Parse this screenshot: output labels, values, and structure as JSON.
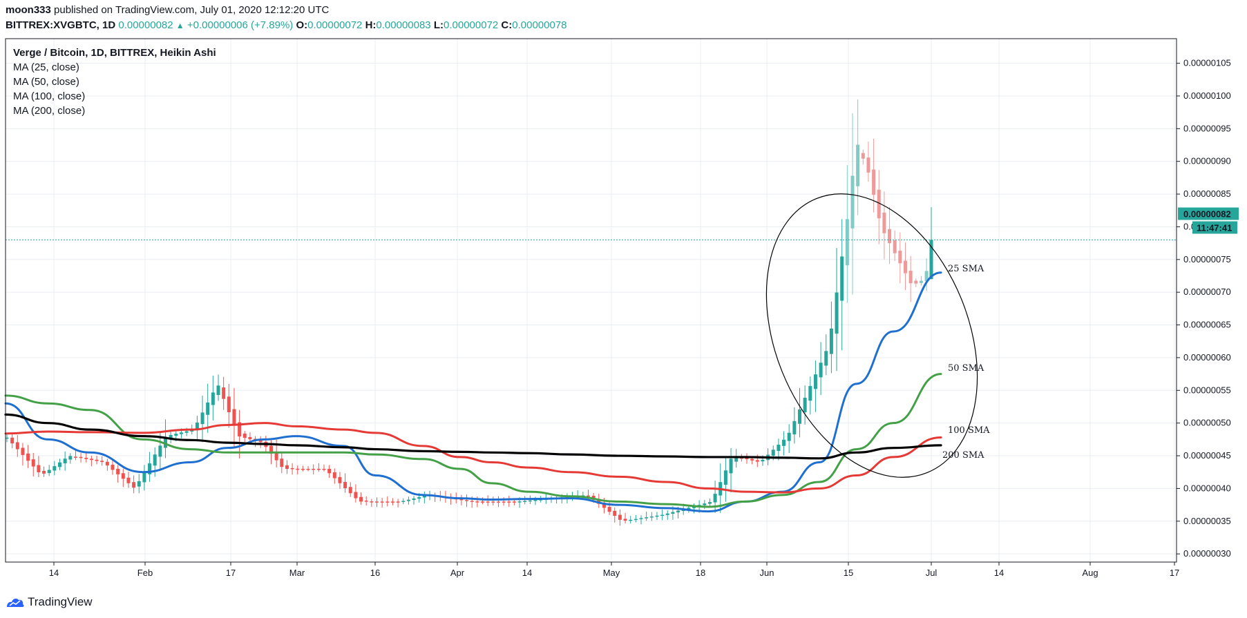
{
  "header": {
    "author": "moon333",
    "published_text": "published on TradingView.com, July 01, 2020 12:12:20 UTC",
    "symbol": "BITTREX:XVGBTC, 1D",
    "last_price": "0.00000082",
    "change": "+0.00000006 (+7.89%)",
    "o_label": "O:",
    "o_value": "0.00000072",
    "h_label": "H:",
    "h_value": "0.00000083",
    "l_label": "L:",
    "l_value": "0.00000072",
    "c_label": "C:",
    "c_value": "0.00000078"
  },
  "footer": {
    "brand": "TradingView",
    "icon": "tradingview-logo-icon"
  },
  "colors": {
    "up": "#26a69a",
    "down": "#ef5350",
    "up_light": "#80cbc4",
    "down_light": "#ef9a9a",
    "ma25": "#1e6fd0",
    "ma50": "#43a047",
    "ma100": "#e53935",
    "ma200": "#000000",
    "grid": "#e9eef3",
    "price_line": "#26a69a"
  },
  "chart_data": {
    "type": "line",
    "title": "Verge / Bitcoin, 1D, BITTREX, Heikin Ashi",
    "legend": [
      "MA (25, close)",
      "MA (50, close)",
      "MA (100, close)",
      "MA (200, close)"
    ],
    "x_tick_labels": [
      "14",
      "Feb",
      "17",
      "Mar",
      "16",
      "Apr",
      "14",
      "May",
      "18",
      "Jun",
      "15",
      "Jul",
      "14",
      "Aug",
      "17"
    ],
    "y_tick_labels": [
      "0.00000105",
      "0.00000100",
      "0.00000095",
      "0.00000090",
      "0.00000085",
      "0.00000080",
      "0.00000075",
      "0.00000070",
      "0.00000065",
      "0.00000060",
      "0.00000055",
      "0.00000050",
      "0.00000045",
      "0.00000040",
      "0.00000035",
      "0.00000030"
    ],
    "ylim": [
      2.97e-07,
      1.058e-06
    ],
    "price_label": "0.00000082",
    "countdown_label": "11:47:41",
    "current_price": 7.8e-07,
    "x": [
      "2020-01-06",
      "2020-01-14",
      "2020-01-22",
      "2020-02-01",
      "2020-02-10",
      "2020-02-17",
      "2020-02-24",
      "2020-03-01",
      "2020-03-10",
      "2020-03-16",
      "2020-03-25",
      "2020-04-01",
      "2020-04-07",
      "2020-04-14",
      "2020-04-22",
      "2020-05-01",
      "2020-05-10",
      "2020-05-18",
      "2020-05-25",
      "2020-06-01",
      "2020-06-08",
      "2020-06-15",
      "2020-06-22",
      "2020-07-01"
    ],
    "series": [
      {
        "name": "MA (25, close)",
        "values": [
          5.3e-07,
          4.75e-07,
          4.55e-07,
          4.25e-07,
          4.4e-07,
          4.62e-07,
          4.75e-07,
          4.8e-07,
          4.65e-07,
          4.2e-07,
          3.9e-07,
          3.85e-07,
          3.83e-07,
          3.84e-07,
          3.85e-07,
          3.75e-07,
          3.7e-07,
          3.65e-07,
          3.8e-07,
          3.95e-07,
          4.4e-07,
          5.6e-07,
          6.4e-07,
          7.3e-07
        ]
      },
      {
        "name": "MA (50, close)",
        "values": [
          5.42e-07,
          5.3e-07,
          5.2e-07,
          4.75e-07,
          4.6e-07,
          4.55e-07,
          4.55e-07,
          4.55e-07,
          4.55e-07,
          4.52e-07,
          4.45e-07,
          4.3e-07,
          4.08e-07,
          3.95e-07,
          3.88e-07,
          3.8e-07,
          3.76e-07,
          3.72e-07,
          3.8e-07,
          3.9e-07,
          4.1e-07,
          4.6e-07,
          5e-07,
          5.75e-07
        ]
      },
      {
        "name": "MA (100, close)",
        "values": [
          4.84e-07,
          4.87e-07,
          4.86e-07,
          4.85e-07,
          4.9e-07,
          4.97e-07,
          5e-07,
          4.95e-07,
          4.9e-07,
          4.85e-07,
          4.65e-07,
          4.48e-07,
          4.4e-07,
          4.32e-07,
          4.25e-07,
          4.18e-07,
          4.1e-07,
          4e-07,
          3.95e-07,
          3.94e-07,
          4e-07,
          4.2e-07,
          4.48e-07,
          4.78e-07
        ]
      },
      {
        "name": "MA (200, close)",
        "values": [
          5.13e-07,
          5e-07,
          4.9e-07,
          4.8e-07,
          4.74e-07,
          4.7e-07,
          4.68e-07,
          4.66e-07,
          4.63e-07,
          4.6e-07,
          4.57e-07,
          4.56e-07,
          4.55e-07,
          4.54e-07,
          4.52e-07,
          4.5e-07,
          4.49e-07,
          4.48e-07,
          4.48e-07,
          4.47e-07,
          4.46e-07,
          4.55e-07,
          4.62e-07,
          4.66e-07
        ]
      }
    ],
    "annotations": [
      "25 SMA",
      "50 SMA",
      "100 SMA",
      "200 SMA"
    ],
    "grid": true,
    "legend_position": "top-left"
  }
}
